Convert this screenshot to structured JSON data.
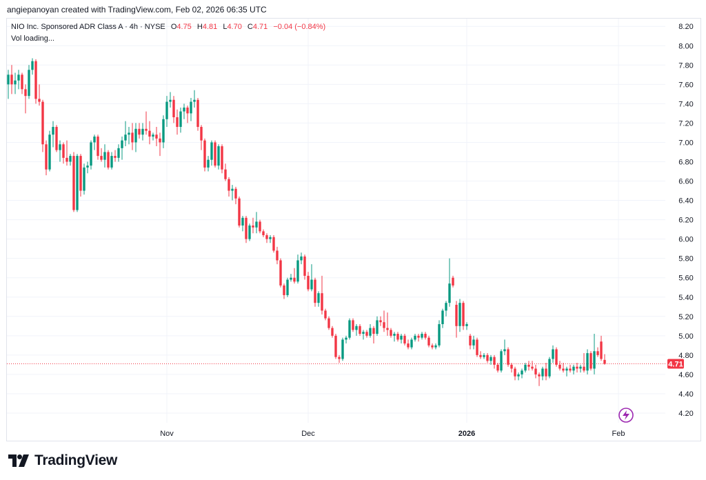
{
  "header": {
    "credit": "angiepanoyan created with TradingView.com, Feb 02, 2026 06:35 UTC"
  },
  "legend": {
    "symbol": "NIO Inc. Sponsored ADR Class A · 4h · NYSE",
    "o_label": "O",
    "o_value": "4.75",
    "h_label": "H",
    "h_value": "4.81",
    "l_label": "L",
    "l_value": "4.70",
    "c_label": "C",
    "c_value": "4.71",
    "change": "−0.04 (−0.84%)",
    "vol": "Vol loading..."
  },
  "footer": {
    "brand": "TradingView"
  },
  "colors": {
    "up": "#089981",
    "down": "#f23645",
    "grid": "#f0f3fa",
    "axis_text": "#131722",
    "price_line": "#f23645",
    "badge_icon": "#9c27b0"
  },
  "chart_data": {
    "type": "candlestick",
    "interval": "4h",
    "ylim": [
      4.1,
      8.28
    ],
    "y_ticks": [
      "8.20",
      "8.00",
      "7.80",
      "7.60",
      "7.40",
      "7.20",
      "7.00",
      "6.80",
      "6.60",
      "6.40",
      "6.20",
      "6.00",
      "5.80",
      "5.60",
      "5.40",
      "5.20",
      "5.00",
      "4.80",
      "4.60",
      "4.40",
      "4.20"
    ],
    "x_ticks": [
      {
        "label": "Nov",
        "index": 46,
        "bold": false
      },
      {
        "label": "Dec",
        "index": 87,
        "bold": false
      },
      {
        "label": "2026",
        "index": 133,
        "bold": true
      },
      {
        "label": "Feb",
        "index": 177,
        "bold": false
      }
    ],
    "last_price": "4.71",
    "grid": true,
    "candles": [
      {
        "o": 7.6,
        "h": 7.75,
        "l": 7.45,
        "c": 7.7
      },
      {
        "o": 7.7,
        "h": 7.8,
        "l": 7.5,
        "c": 7.6
      },
      {
        "o": 7.6,
        "h": 7.72,
        "l": 7.5,
        "c": 7.64
      },
      {
        "o": 7.64,
        "h": 7.75,
        "l": 7.55,
        "c": 7.7
      },
      {
        "o": 7.7,
        "h": 7.72,
        "l": 7.5,
        "c": 7.55
      },
      {
        "o": 7.55,
        "h": 7.6,
        "l": 7.3,
        "c": 7.48
      },
      {
        "o": 7.48,
        "h": 7.8,
        "l": 7.45,
        "c": 7.75
      },
      {
        "o": 7.75,
        "h": 7.87,
        "l": 7.7,
        "c": 7.84
      },
      {
        "o": 7.84,
        "h": 7.86,
        "l": 7.4,
        "c": 7.45
      },
      {
        "o": 7.45,
        "h": 7.6,
        "l": 7.38,
        "c": 7.42
      },
      {
        "o": 7.42,
        "h": 7.44,
        "l": 6.9,
        "c": 6.98
      },
      {
        "o": 6.98,
        "h": 7.02,
        "l": 6.66,
        "c": 6.72
      },
      {
        "o": 6.72,
        "h": 7.12,
        "l": 6.7,
        "c": 7.08
      },
      {
        "o": 7.08,
        "h": 7.22,
        "l": 6.95,
        "c": 7.16
      },
      {
        "o": 7.16,
        "h": 7.18,
        "l": 6.9,
        "c": 6.92
      },
      {
        "o": 6.92,
        "h": 7.02,
        "l": 6.8,
        "c": 6.98
      },
      {
        "o": 6.98,
        "h": 7.0,
        "l": 6.78,
        "c": 6.84
      },
      {
        "o": 6.84,
        "h": 7.02,
        "l": 6.76,
        "c": 6.8
      },
      {
        "o": 6.8,
        "h": 6.88,
        "l": 6.76,
        "c": 6.86
      },
      {
        "o": 6.86,
        "h": 6.9,
        "l": 6.28,
        "c": 6.3
      },
      {
        "o": 6.3,
        "h": 6.88,
        "l": 6.28,
        "c": 6.86
      },
      {
        "o": 6.86,
        "h": 6.88,
        "l": 6.44,
        "c": 6.5
      },
      {
        "o": 6.5,
        "h": 6.78,
        "l": 6.46,
        "c": 6.74
      },
      {
        "o": 6.74,
        "h": 6.8,
        "l": 6.68,
        "c": 6.76
      },
      {
        "o": 6.76,
        "h": 7.02,
        "l": 6.72,
        "c": 7.0
      },
      {
        "o": 7.0,
        "h": 7.08,
        "l": 6.92,
        "c": 7.06
      },
      {
        "o": 7.06,
        "h": 7.08,
        "l": 6.82,
        "c": 6.86
      },
      {
        "o": 6.86,
        "h": 6.94,
        "l": 6.8,
        "c": 6.82
      },
      {
        "o": 6.82,
        "h": 6.98,
        "l": 6.74,
        "c": 6.9
      },
      {
        "o": 6.9,
        "h": 6.92,
        "l": 6.72,
        "c": 6.74
      },
      {
        "o": 6.74,
        "h": 6.9,
        "l": 6.72,
        "c": 6.86
      },
      {
        "o": 6.86,
        "h": 6.92,
        "l": 6.8,
        "c": 6.84
      },
      {
        "o": 6.84,
        "h": 6.98,
        "l": 6.8,
        "c": 6.94
      },
      {
        "o": 6.94,
        "h": 7.06,
        "l": 6.82,
        "c": 7.02
      },
      {
        "o": 7.02,
        "h": 7.22,
        "l": 6.96,
        "c": 7.08
      },
      {
        "o": 7.08,
        "h": 7.16,
        "l": 6.98,
        "c": 7.1
      },
      {
        "o": 7.1,
        "h": 7.2,
        "l": 6.92,
        "c": 7.0
      },
      {
        "o": 7.0,
        "h": 7.2,
        "l": 6.9,
        "c": 7.14
      },
      {
        "o": 7.14,
        "h": 7.2,
        "l": 7.04,
        "c": 7.08
      },
      {
        "o": 7.08,
        "h": 7.2,
        "l": 7.02,
        "c": 7.14
      },
      {
        "o": 7.14,
        "h": 7.32,
        "l": 7.08,
        "c": 7.12
      },
      {
        "o": 7.12,
        "h": 7.22,
        "l": 6.98,
        "c": 7.06
      },
      {
        "o": 7.06,
        "h": 7.1,
        "l": 7.02,
        "c": 7.08
      },
      {
        "o": 7.08,
        "h": 7.16,
        "l": 6.96,
        "c": 7.04
      },
      {
        "o": 7.04,
        "h": 7.1,
        "l": 6.86,
        "c": 7.0
      },
      {
        "o": 7.0,
        "h": 7.28,
        "l": 6.94,
        "c": 7.24
      },
      {
        "o": 7.24,
        "h": 7.48,
        "l": 7.16,
        "c": 7.42
      },
      {
        "o": 7.42,
        "h": 7.52,
        "l": 7.36,
        "c": 7.44
      },
      {
        "o": 7.44,
        "h": 7.48,
        "l": 7.2,
        "c": 7.26
      },
      {
        "o": 7.26,
        "h": 7.34,
        "l": 7.08,
        "c": 7.16
      },
      {
        "o": 7.16,
        "h": 7.36,
        "l": 7.1,
        "c": 7.32
      },
      {
        "o": 7.32,
        "h": 7.4,
        "l": 7.24,
        "c": 7.36
      },
      {
        "o": 7.36,
        "h": 7.38,
        "l": 7.2,
        "c": 7.3
      },
      {
        "o": 7.3,
        "h": 7.46,
        "l": 7.22,
        "c": 7.42
      },
      {
        "o": 7.42,
        "h": 7.54,
        "l": 7.36,
        "c": 7.44
      },
      {
        "o": 7.44,
        "h": 7.46,
        "l": 7.12,
        "c": 7.16
      },
      {
        "o": 7.16,
        "h": 7.18,
        "l": 6.92,
        "c": 7.02
      },
      {
        "o": 7.02,
        "h": 7.04,
        "l": 6.7,
        "c": 6.74
      },
      {
        "o": 6.74,
        "h": 6.86,
        "l": 6.7,
        "c": 6.82
      },
      {
        "o": 6.82,
        "h": 7.02,
        "l": 6.76,
        "c": 7.0
      },
      {
        "o": 7.0,
        "h": 7.02,
        "l": 6.74,
        "c": 6.76
      },
      {
        "o": 6.76,
        "h": 6.98,
        "l": 6.72,
        "c": 6.96
      },
      {
        "o": 6.96,
        "h": 6.98,
        "l": 6.68,
        "c": 6.72
      },
      {
        "o": 6.72,
        "h": 6.78,
        "l": 6.6,
        "c": 6.62
      },
      {
        "o": 6.62,
        "h": 6.64,
        "l": 6.44,
        "c": 6.5
      },
      {
        "o": 6.5,
        "h": 6.56,
        "l": 6.4,
        "c": 6.52
      },
      {
        "o": 6.52,
        "h": 6.54,
        "l": 6.36,
        "c": 6.42
      },
      {
        "o": 6.42,
        "h": 6.44,
        "l": 6.12,
        "c": 6.14
      },
      {
        "o": 6.14,
        "h": 6.24,
        "l": 6.08,
        "c": 6.22
      },
      {
        "o": 6.22,
        "h": 6.24,
        "l": 5.96,
        "c": 6.0
      },
      {
        "o": 6.0,
        "h": 6.16,
        "l": 5.98,
        "c": 6.14
      },
      {
        "o": 6.14,
        "h": 6.22,
        "l": 6.06,
        "c": 6.12
      },
      {
        "o": 6.12,
        "h": 6.28,
        "l": 6.06,
        "c": 6.18
      },
      {
        "o": 6.18,
        "h": 6.2,
        "l": 6.06,
        "c": 6.08
      },
      {
        "o": 6.08,
        "h": 6.1,
        "l": 6.02,
        "c": 6.04
      },
      {
        "o": 6.04,
        "h": 6.06,
        "l": 5.96,
        "c": 6.0
      },
      {
        "o": 6.0,
        "h": 6.04,
        "l": 5.96,
        "c": 6.02
      },
      {
        "o": 6.02,
        "h": 6.04,
        "l": 5.86,
        "c": 5.88
      },
      {
        "o": 5.88,
        "h": 5.92,
        "l": 5.74,
        "c": 5.78
      },
      {
        "o": 5.78,
        "h": 5.8,
        "l": 5.5,
        "c": 5.52
      },
      {
        "o": 5.52,
        "h": 5.54,
        "l": 5.38,
        "c": 5.42
      },
      {
        "o": 5.42,
        "h": 5.6,
        "l": 5.4,
        "c": 5.58
      },
      {
        "o": 5.58,
        "h": 5.64,
        "l": 5.56,
        "c": 5.6
      },
      {
        "o": 5.6,
        "h": 5.7,
        "l": 5.54,
        "c": 5.56
      },
      {
        "o": 5.56,
        "h": 5.84,
        "l": 5.54,
        "c": 5.78
      },
      {
        "o": 5.78,
        "h": 5.86,
        "l": 5.74,
        "c": 5.82
      },
      {
        "o": 5.82,
        "h": 5.84,
        "l": 5.58,
        "c": 5.62
      },
      {
        "o": 5.62,
        "h": 5.66,
        "l": 5.46,
        "c": 5.48
      },
      {
        "o": 5.48,
        "h": 5.74,
        "l": 5.46,
        "c": 5.58
      },
      {
        "o": 5.58,
        "h": 5.6,
        "l": 5.3,
        "c": 5.34
      },
      {
        "o": 5.34,
        "h": 5.46,
        "l": 5.3,
        "c": 5.44
      },
      {
        "o": 5.44,
        "h": 5.62,
        "l": 5.22,
        "c": 5.26
      },
      {
        "o": 5.26,
        "h": 5.28,
        "l": 5.16,
        "c": 5.18
      },
      {
        "o": 5.18,
        "h": 5.2,
        "l": 5.06,
        "c": 5.08
      },
      {
        "o": 5.08,
        "h": 5.1,
        "l": 4.98,
        "c": 5.0
      },
      {
        "o": 5.0,
        "h": 5.02,
        "l": 4.76,
        "c": 4.78
      },
      {
        "o": 4.78,
        "h": 4.8,
        "l": 4.72,
        "c": 4.76
      },
      {
        "o": 4.76,
        "h": 4.98,
        "l": 4.74,
        "c": 4.96
      },
      {
        "o": 4.96,
        "h": 5.0,
        "l": 4.92,
        "c": 4.98
      },
      {
        "o": 4.98,
        "h": 5.18,
        "l": 4.96,
        "c": 5.16
      },
      {
        "o": 5.16,
        "h": 5.18,
        "l": 5.04,
        "c": 5.06
      },
      {
        "o": 5.06,
        "h": 5.12,
        "l": 5.0,
        "c": 5.1
      },
      {
        "o": 5.1,
        "h": 5.12,
        "l": 5.0,
        "c": 5.02
      },
      {
        "o": 5.02,
        "h": 5.06,
        "l": 4.96,
        "c": 5.04
      },
      {
        "o": 5.04,
        "h": 5.06,
        "l": 4.98,
        "c": 5.0
      },
      {
        "o": 5.0,
        "h": 5.12,
        "l": 4.98,
        "c": 5.08
      },
      {
        "o": 5.08,
        "h": 5.1,
        "l": 4.92,
        "c": 5.02
      },
      {
        "o": 5.02,
        "h": 5.2,
        "l": 5.0,
        "c": 5.16
      },
      {
        "o": 5.16,
        "h": 5.2,
        "l": 5.1,
        "c": 5.14
      },
      {
        "o": 5.14,
        "h": 5.26,
        "l": 5.04,
        "c": 5.08
      },
      {
        "o": 5.08,
        "h": 5.24,
        "l": 5.0,
        "c": 5.06
      },
      {
        "o": 5.06,
        "h": 5.08,
        "l": 4.98,
        "c": 5.0
      },
      {
        "o": 5.0,
        "h": 5.04,
        "l": 4.94,
        "c": 5.02
      },
      {
        "o": 5.02,
        "h": 5.04,
        "l": 4.94,
        "c": 4.96
      },
      {
        "o": 4.96,
        "h": 5.02,
        "l": 4.92,
        "c": 5.0
      },
      {
        "o": 5.0,
        "h": 5.02,
        "l": 4.9,
        "c": 4.92
      },
      {
        "o": 4.92,
        "h": 4.96,
        "l": 4.86,
        "c": 4.88
      },
      {
        "o": 4.88,
        "h": 4.98,
        "l": 4.86,
        "c": 4.96
      },
      {
        "o": 4.96,
        "h": 5.02,
        "l": 4.94,
        "c": 5.0
      },
      {
        "o": 5.0,
        "h": 5.02,
        "l": 4.94,
        "c": 4.98
      },
      {
        "o": 4.98,
        "h": 5.04,
        "l": 4.96,
        "c": 5.02
      },
      {
        "o": 5.02,
        "h": 5.04,
        "l": 4.96,
        "c": 4.98
      },
      {
        "o": 4.98,
        "h": 5.0,
        "l": 4.88,
        "c": 4.9
      },
      {
        "o": 4.9,
        "h": 4.92,
        "l": 4.86,
        "c": 4.88
      },
      {
        "o": 4.88,
        "h": 4.92,
        "l": 4.86,
        "c": 4.9
      },
      {
        "o": 4.9,
        "h": 5.16,
        "l": 4.88,
        "c": 5.12
      },
      {
        "o": 5.12,
        "h": 5.28,
        "l": 5.08,
        "c": 5.26
      },
      {
        "o": 5.26,
        "h": 5.36,
        "l": 5.2,
        "c": 5.34
      },
      {
        "o": 5.34,
        "h": 5.8,
        "l": 5.3,
        "c": 5.54
      },
      {
        "o": 5.6,
        "h": 5.62,
        "l": 5.5,
        "c": 5.52
      },
      {
        "o": 5.32,
        "h": 5.36,
        "l": 4.98,
        "c": 5.1
      },
      {
        "o": 5.1,
        "h": 5.38,
        "l": 5.04,
        "c": 5.34
      },
      {
        "o": 5.34,
        "h": 5.36,
        "l": 5.06,
        "c": 5.1
      },
      {
        "o": 5.1,
        "h": 5.14,
        "l": 5.06,
        "c": 5.12
      },
      {
        "o": 5.0,
        "h": 5.02,
        "l": 4.86,
        "c": 4.9
      },
      {
        "o": 4.9,
        "h": 5.0,
        "l": 4.86,
        "c": 4.96
      },
      {
        "o": 4.96,
        "h": 4.98,
        "l": 4.78,
        "c": 4.8
      },
      {
        "o": 4.8,
        "h": 4.84,
        "l": 4.76,
        "c": 4.78
      },
      {
        "o": 4.78,
        "h": 4.82,
        "l": 4.76,
        "c": 4.8
      },
      {
        "o": 4.8,
        "h": 4.82,
        "l": 4.72,
        "c": 4.74
      },
      {
        "o": 4.74,
        "h": 4.8,
        "l": 4.7,
        "c": 4.78
      },
      {
        "o": 4.78,
        "h": 4.8,
        "l": 4.66,
        "c": 4.7
      },
      {
        "o": 4.7,
        "h": 4.72,
        "l": 4.62,
        "c": 4.64
      },
      {
        "o": 4.64,
        "h": 4.86,
        "l": 4.62,
        "c": 4.84
      },
      {
        "o": 4.84,
        "h": 4.96,
        "l": 4.8,
        "c": 4.86
      },
      {
        "o": 4.86,
        "h": 4.88,
        "l": 4.68,
        "c": 4.7
      },
      {
        "o": 4.7,
        "h": 4.72,
        "l": 4.62,
        "c": 4.66
      },
      {
        "o": 4.66,
        "h": 4.68,
        "l": 4.54,
        "c": 4.58
      },
      {
        "o": 4.58,
        "h": 4.62,
        "l": 4.54,
        "c": 4.6
      },
      {
        "o": 4.6,
        "h": 4.66,
        "l": 4.56,
        "c": 4.64
      },
      {
        "o": 4.64,
        "h": 4.72,
        "l": 4.62,
        "c": 4.7
      },
      {
        "o": 4.7,
        "h": 4.74,
        "l": 4.64,
        "c": 4.68
      },
      {
        "o": 4.68,
        "h": 4.74,
        "l": 4.64,
        "c": 4.66
      },
      {
        "o": 4.66,
        "h": 4.7,
        "l": 4.56,
        "c": 4.6
      },
      {
        "o": 4.6,
        "h": 4.62,
        "l": 4.48,
        "c": 4.58
      },
      {
        "o": 4.58,
        "h": 4.68,
        "l": 4.54,
        "c": 4.66
      },
      {
        "o": 4.66,
        "h": 4.72,
        "l": 4.54,
        "c": 4.58
      },
      {
        "o": 4.58,
        "h": 4.78,
        "l": 4.56,
        "c": 4.76
      },
      {
        "o": 4.76,
        "h": 4.9,
        "l": 4.72,
        "c": 4.86
      },
      {
        "o": 4.86,
        "h": 4.88,
        "l": 4.68,
        "c": 4.7
      },
      {
        "o": 4.7,
        "h": 4.74,
        "l": 4.64,
        "c": 4.66
      },
      {
        "o": 4.66,
        "h": 4.72,
        "l": 4.62,
        "c": 4.64
      },
      {
        "o": 4.64,
        "h": 4.68,
        "l": 4.58,
        "c": 4.66
      },
      {
        "o": 4.66,
        "h": 4.7,
        "l": 4.62,
        "c": 4.64
      },
      {
        "o": 4.64,
        "h": 4.7,
        "l": 4.6,
        "c": 4.68
      },
      {
        "o": 4.68,
        "h": 4.72,
        "l": 4.62,
        "c": 4.66
      },
      {
        "o": 4.66,
        "h": 4.7,
        "l": 4.62,
        "c": 4.68
      },
      {
        "o": 4.68,
        "h": 4.82,
        "l": 4.62,
        "c": 4.64
      },
      {
        "o": 4.64,
        "h": 4.86,
        "l": 4.6,
        "c": 4.82
      },
      {
        "o": 4.82,
        "h": 4.84,
        "l": 4.64,
        "c": 4.66
      },
      {
        "o": 4.66,
        "h": 5.02,
        "l": 4.6,
        "c": 4.84
      },
      {
        "o": 4.84,
        "h": 4.88,
        "l": 4.78,
        "c": 4.8
      },
      {
        "o": 4.94,
        "h": 5.0,
        "l": 4.74,
        "c": 4.76
      },
      {
        "o": 4.75,
        "h": 4.81,
        "l": 4.7,
        "c": 4.71
      }
    ]
  }
}
